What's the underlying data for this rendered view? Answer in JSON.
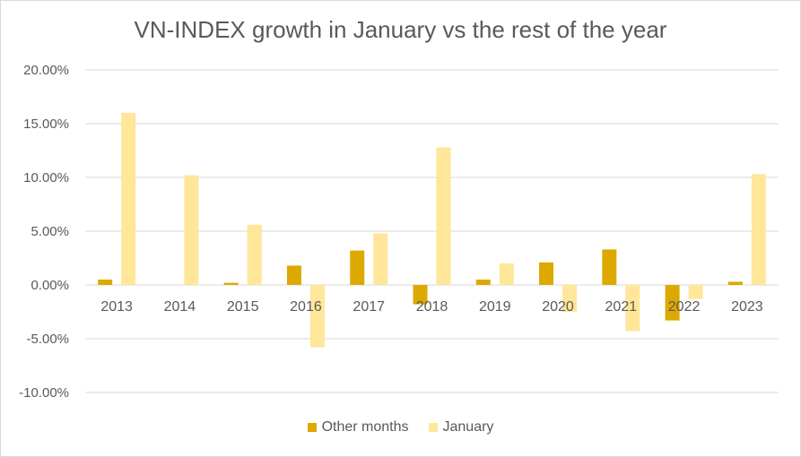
{
  "chart_data": {
    "type": "bar",
    "title": "VN-INDEX growth in January vs the rest of the year",
    "categories": [
      "2013",
      "2014",
      "2015",
      "2016",
      "2017",
      "2018",
      "2019",
      "2020",
      "2021",
      "2022",
      "2023"
    ],
    "series": [
      {
        "name": "Other months",
        "color": "#DDA900",
        "values": [
          0.5,
          0.0,
          0.2,
          1.8,
          3.2,
          -1.8,
          0.5,
          2.1,
          3.3,
          -3.3,
          0.3
        ]
      },
      {
        "name": "January",
        "color": "#FFE699",
        "values": [
          16.0,
          10.2,
          5.6,
          -5.8,
          4.8,
          12.8,
          2.0,
          -2.5,
          -4.3,
          -1.3,
          10.3
        ]
      }
    ],
    "y_ticks": [
      "20.00%",
      "15.00%",
      "10.00%",
      "5.00%",
      "0.00%",
      "-5.00%",
      "-10.00%"
    ],
    "ylim": [
      -10,
      20
    ],
    "y_unit": "%",
    "grid": true,
    "legend_position": "bottom"
  }
}
